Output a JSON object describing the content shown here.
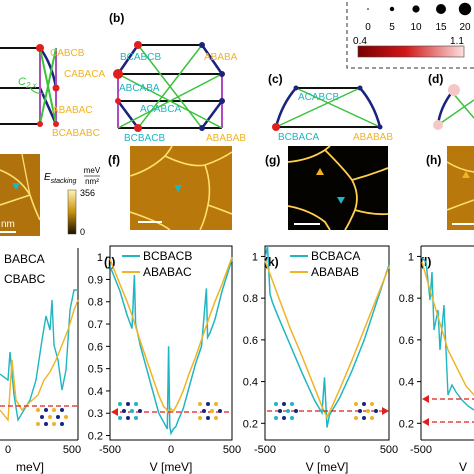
{
  "legend": {
    "size_ticks": [
      "0",
      "5",
      "10",
      "15",
      "20"
    ],
    "color_ticks": [
      "0.4",
      "1.1"
    ],
    "colors": {
      "low": "#8b0000",
      "high": "#f7c9c9"
    }
  },
  "panels": {
    "a": {
      "labels": [
        "CABCB",
        "CABACA",
        "ABABAC",
        "BCABABC"
      ],
      "c2x_label": "C",
      "c2x_sub": "2,x"
    },
    "b": {
      "tag": "(b)",
      "labels": [
        "BCABCB",
        "ABABA",
        "ABCABA",
        "ACABCA",
        "BCBACB",
        "ABABAB"
      ]
    },
    "c": {
      "tag": "(c)",
      "labels": [
        "ACABCB",
        "BCBACA",
        "ABABAB"
      ]
    },
    "d": {
      "tag": "(d)"
    },
    "f": {
      "tag": "(f)"
    },
    "g": {
      "tag": "(g)"
    },
    "h": {
      "tag": "(h)"
    },
    "e": {
      "scale_label": "nm",
      "cbar_title": "E",
      "cbar_sub": "stacking",
      "cbar_unit_num": "meV",
      "cbar_unit_den": "nm²",
      "cbar_max": "356",
      "cbar_min": "0"
    },
    "i": {
      "legend": [
        "BABCA",
        "CBABC"
      ],
      "xticks": [
        "0",
        "500"
      ],
      "xlabel": "meV]"
    },
    "j": {
      "tag": "(j)",
      "legend": [
        "BCBACB",
        "ABABAC"
      ],
      "yticks": [
        "1",
        "0.9",
        "0.8",
        "0.7",
        "0.6",
        "0.5",
        "0.4",
        "0.3",
        "0.2"
      ],
      "xticks": [
        "-500",
        "0",
        "500"
      ],
      "xlabel": "V [meV]"
    },
    "k": {
      "tag": "(k)",
      "legend": [
        "BCBACA",
        "ABABAB"
      ],
      "yticks": [
        "1",
        "0.8",
        "0.6",
        "0.4",
        "0.2"
      ],
      "xticks": [
        "-500",
        "0",
        "500"
      ],
      "xlabel": "V [meV]"
    },
    "l": {
      "tag": "(l)",
      "yticks": [
        "1",
        "0.8",
        "0.6",
        "0.4",
        "0.2"
      ],
      "xticks": [
        "-500"
      ],
      "xlabel": "V"
    }
  },
  "series_colors": {
    "cyan": "#1fb5c2",
    "gold": "#f0b323",
    "dashed": "#e01f1f",
    "navy": "#1a237e",
    "green": "#3cc23c",
    "purple": "#b04ac0"
  },
  "chart_data": [
    {
      "type": "line",
      "panel": "j",
      "xlim": [
        -500,
        500
      ],
      "ylim": [
        0.18,
        1.05
      ],
      "series": [
        {
          "name": "BCBACB",
          "color": "cyan",
          "x": [
            -500,
            -420,
            -360,
            -320,
            -300,
            -290,
            -250,
            -200,
            -150,
            -100,
            -60,
            -40,
            -30,
            -20,
            -10,
            0,
            10,
            20,
            40,
            60,
            100,
            150,
            200,
            250,
            290,
            300,
            320,
            360,
            420,
            500
          ],
          "y": [
            0.96,
            0.85,
            0.74,
            0.68,
            0.92,
            0.7,
            0.6,
            0.5,
            0.4,
            0.3,
            0.26,
            0.24,
            0.23,
            0.6,
            0.24,
            0.21,
            0.22,
            0.23,
            0.24,
            0.27,
            0.32,
            0.42,
            0.52,
            0.6,
            0.86,
            0.64,
            0.66,
            0.72,
            0.85,
            0.99
          ]
        },
        {
          "name": "ABABAC",
          "color": "gold",
          "x": [
            -500,
            -420,
            -360,
            -320,
            -250,
            -200,
            -150,
            -100,
            -60,
            -40,
            -20,
            0,
            20,
            40,
            60,
            100,
            150,
            200,
            250,
            320,
            360,
            420,
            500
          ],
          "y": [
            0.99,
            0.88,
            0.8,
            0.74,
            0.62,
            0.54,
            0.46,
            0.38,
            0.33,
            0.32,
            0.3,
            0.32,
            0.31,
            0.33,
            0.35,
            0.4,
            0.48,
            0.55,
            0.63,
            0.74,
            0.8,
            0.88,
            1.0
          ]
        }
      ]
    },
    {
      "type": "line",
      "panel": "k",
      "xlim": [
        -500,
        500
      ],
      "ylim": [
        0.12,
        1.05
      ],
      "series": [
        {
          "name": "BCBACA",
          "color": "cyan",
          "x": [
            -500,
            -480,
            -460,
            -440,
            -400,
            -300,
            -200,
            -100,
            -40,
            -20,
            0,
            20,
            40,
            100,
            200,
            300,
            400,
            500
          ],
          "y": [
            0.99,
            1.05,
            0.82,
            0.78,
            0.72,
            0.58,
            0.44,
            0.31,
            0.25,
            0.42,
            0.18,
            0.24,
            0.26,
            0.32,
            0.45,
            0.6,
            0.78,
            0.96
          ]
        },
        {
          "name": "ABABAB",
          "color": "gold",
          "x": [
            -500,
            -400,
            -300,
            -200,
            -100,
            -40,
            0,
            40,
            100,
            200,
            300,
            400,
            500
          ],
          "y": [
            0.98,
            0.82,
            0.66,
            0.52,
            0.37,
            0.28,
            0.23,
            0.28,
            0.36,
            0.5,
            0.65,
            0.8,
            0.95
          ]
        }
      ]
    }
  ]
}
